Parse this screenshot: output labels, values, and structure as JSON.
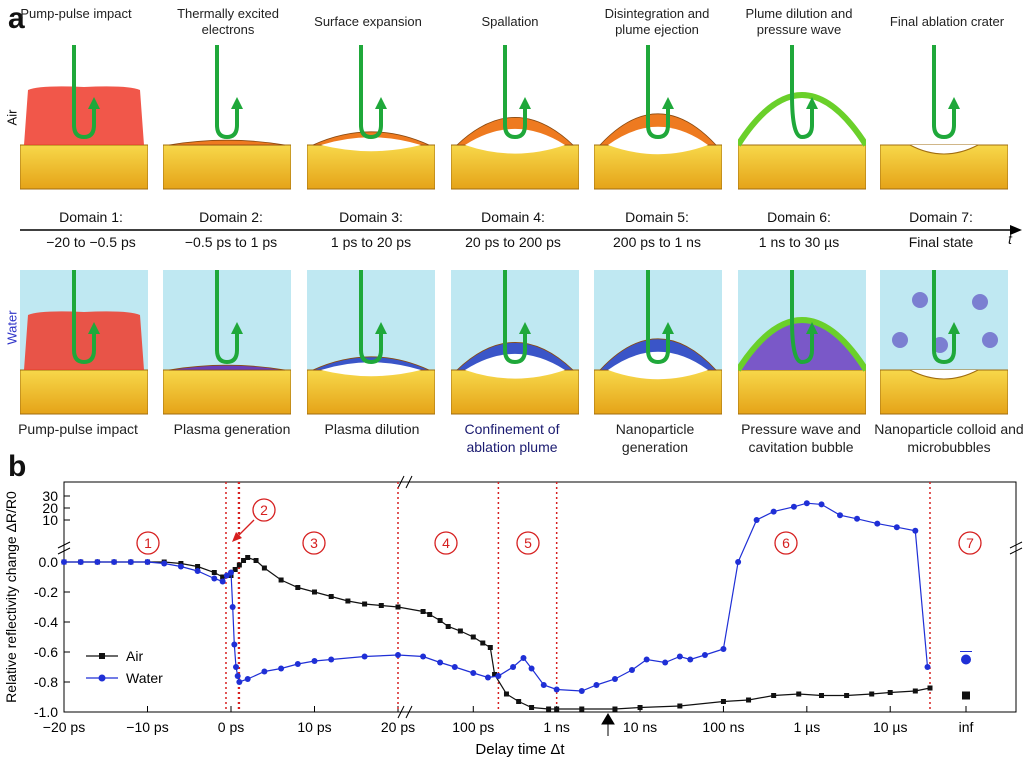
{
  "panel_a": {
    "label": "a",
    "air_label": "Air",
    "water_label": "Water",
    "time_axis_symbol": "t",
    "stages_top": [
      {
        "title": "Pump-pulse impact"
      },
      {
        "title": "Thermally excited electrons"
      },
      {
        "title": "Surface expansion"
      },
      {
        "title": "Spallation"
      },
      {
        "title": "Disintegration and plume ejection"
      },
      {
        "title": "Plume dilution and pressure wave"
      },
      {
        "title": "Final ablation crater"
      }
    ],
    "domains": [
      {
        "title": "Domain 1:",
        "range": "−20 to −0.5 ps"
      },
      {
        "title": "Domain 2:",
        "range": "−0.5 ps to 1 ps"
      },
      {
        "title": "Domain 3:",
        "range": "1 ps to 20 ps"
      },
      {
        "title": "Domain 4:",
        "range": "20 ps to 200 ps"
      },
      {
        "title": "Domain 5:",
        "range": "200 ps to 1 ns"
      },
      {
        "title": "Domain 6:",
        "range": "1 ns to 30 µs"
      },
      {
        "title": "Domain 7:",
        "range": "Final state"
      }
    ],
    "stages_bottom": [
      {
        "caption": "Pump-pulse impact"
      },
      {
        "caption": "Plasma generation"
      },
      {
        "caption": "Plasma dilution"
      },
      {
        "caption": "Confinement of ablation plume"
      },
      {
        "caption": "Nanoparticle generation"
      },
      {
        "caption": "Pressure wave and cavitation bubble"
      },
      {
        "caption": "Nanoparticle colloid and microbubbles"
      }
    ]
  },
  "panel_b": {
    "label": "b"
  },
  "colors": {
    "air": "#111111",
    "water": "#1f2fd6",
    "domain_line": "#d62020",
    "plate": "#f2c230",
    "water_bg": "#bfe8f2"
  },
  "chart_data": {
    "type": "line",
    "title": "",
    "xlabel": "Delay time Δt",
    "ylabel": "Relative reflectivity change ΔR/R0",
    "ylim": [
      -1.0,
      30
    ],
    "y_ticks_lower": [
      "0.0",
      "-0.2",
      "-0.4",
      "-0.6",
      "-0.8",
      "-1.0"
    ],
    "y_ticks_upper": [
      "30",
      "20",
      "10"
    ],
    "x_ticks": [
      "−20 ps",
      "−10 ps",
      "0 ps",
      "10 ps",
      "20 ps",
      "100 ps",
      "1 ns",
      "10 ns",
      "100 ns",
      "1 µs",
      "10 µs",
      "inf"
    ],
    "domain_markers": [
      "1",
      "2",
      "3",
      "4",
      "5",
      "6",
      "7"
    ],
    "legend": [
      {
        "name": "Air",
        "color": "#111111"
      },
      {
        "name": "Water",
        "color": "#1f2fd6"
      }
    ],
    "series": [
      {
        "name": "Air",
        "points": [
          [
            -20,
            0
          ],
          [
            -18,
            0
          ],
          [
            -16,
            0
          ],
          [
            -14,
            0
          ],
          [
            -12,
            0
          ],
          [
            -10,
            0
          ],
          [
            -8,
            0
          ],
          [
            -6,
            -0.01
          ],
          [
            -4,
            -0.03
          ],
          [
            -2,
            -0.07
          ],
          [
            -1,
            -0.1
          ],
          [
            0,
            -0.09
          ],
          [
            0.5,
            -0.05
          ],
          [
            1,
            -0.02
          ],
          [
            1.5,
            0.01
          ],
          [
            2,
            0.03
          ],
          [
            3,
            0.01
          ],
          [
            4,
            -0.04
          ],
          [
            6,
            -0.12
          ],
          [
            8,
            -0.17
          ],
          [
            10,
            -0.2
          ],
          [
            12,
            -0.23
          ],
          [
            14,
            -0.26
          ],
          [
            16,
            -0.28
          ],
          [
            18,
            -0.29
          ],
          [
            20,
            -0.3
          ],
          [
            25,
            -0.33
          ],
          [
            30,
            -0.35
          ],
          [
            40,
            -0.39
          ],
          [
            50,
            -0.43
          ],
          [
            70,
            -0.46
          ],
          [
            100,
            -0.5
          ],
          [
            130,
            -0.54
          ],
          [
            160,
            -0.57
          ],
          [
            180,
            -0.75
          ],
          [
            250,
            -0.88
          ],
          [
            350,
            -0.93
          ],
          [
            500,
            -0.97
          ],
          [
            800,
            -0.98
          ],
          [
            1000,
            -0.98
          ],
          [
            2000,
            -0.98
          ],
          [
            5000,
            -0.98
          ],
          [
            10000,
            -0.97
          ],
          [
            30000,
            -0.96
          ],
          [
            100000,
            -0.93
          ],
          [
            200000,
            -0.92
          ],
          [
            400000,
            -0.89
          ],
          [
            800000,
            -0.88
          ],
          [
            1500000,
            -0.89
          ],
          [
            3000000,
            -0.89
          ],
          [
            6000000,
            -0.88
          ],
          [
            10000000,
            -0.87
          ],
          [
            20000000,
            -0.86
          ],
          [
            30000000,
            -0.84
          ]
        ]
      },
      {
        "name": "Water",
        "points": [
          [
            -20,
            0
          ],
          [
            -18,
            0
          ],
          [
            -16,
            0
          ],
          [
            -14,
            0
          ],
          [
            -12,
            0
          ],
          [
            -10,
            0
          ],
          [
            -8,
            -0.01
          ],
          [
            -6,
            -0.03
          ],
          [
            -4,
            -0.06
          ],
          [
            -2,
            -0.11
          ],
          [
            -1,
            -0.13
          ],
          [
            -0.5,
            -0.09
          ],
          [
            0,
            -0.07
          ],
          [
            0.2,
            -0.3
          ],
          [
            0.4,
            -0.55
          ],
          [
            0.6,
            -0.7
          ],
          [
            0.8,
            -0.76
          ],
          [
            1,
            -0.8
          ],
          [
            2,
            -0.78
          ],
          [
            4,
            -0.73
          ],
          [
            6,
            -0.71
          ],
          [
            8,
            -0.68
          ],
          [
            10,
            -0.66
          ],
          [
            12,
            -0.65
          ],
          [
            16,
            -0.63
          ],
          [
            20,
            -0.62
          ],
          [
            25,
            -0.63
          ],
          [
            40,
            -0.67
          ],
          [
            60,
            -0.7
          ],
          [
            100,
            -0.74
          ],
          [
            150,
            -0.77
          ],
          [
            200,
            -0.76
          ],
          [
            300,
            -0.7
          ],
          [
            400,
            -0.64
          ],
          [
            500,
            -0.71
          ],
          [
            700,
            -0.82
          ],
          [
            1000,
            -0.85
          ],
          [
            2000,
            -0.86
          ],
          [
            3000,
            -0.82
          ],
          [
            5000,
            -0.78
          ],
          [
            8000,
            -0.72
          ],
          [
            12000,
            -0.65
          ],
          [
            20000,
            -0.67
          ],
          [
            30000,
            -0.63
          ],
          [
            40000,
            -0.65
          ],
          [
            60000,
            -0.62
          ],
          [
            100000,
            -0.58
          ],
          [
            150000,
            0
          ],
          [
            250000,
            10
          ],
          [
            400000,
            17
          ],
          [
            700000,
            21
          ],
          [
            1000000,
            24
          ],
          [
            1500000,
            23
          ],
          [
            2500000,
            14
          ],
          [
            4000000,
            11
          ],
          [
            7000000,
            9
          ],
          [
            12000000,
            8
          ],
          [
            20000000,
            7
          ],
          [
            28000000,
            -0.7
          ]
        ]
      }
    ],
    "inf_points": [
      {
        "series": "Air",
        "y": -0.89
      },
      {
        "series": "Water",
        "y": -0.65
      }
    ]
  }
}
